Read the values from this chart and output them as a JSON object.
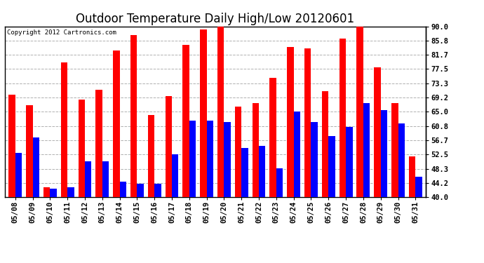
{
  "title": "Outdoor Temperature Daily High/Low 20120601",
  "copyright": "Copyright 2012 Cartronics.com",
  "yticks": [
    40.0,
    44.2,
    48.3,
    52.5,
    56.7,
    60.8,
    65.0,
    69.2,
    73.3,
    77.5,
    81.7,
    85.8,
    90.0
  ],
  "ylim": [
    40.0,
    90.0
  ],
  "dates": [
    "05/08",
    "05/09",
    "05/10",
    "05/11",
    "05/12",
    "05/13",
    "05/14",
    "05/15",
    "05/16",
    "05/17",
    "05/18",
    "05/19",
    "05/20",
    "05/21",
    "05/22",
    "05/23",
    "05/24",
    "05/25",
    "05/26",
    "05/27",
    "05/28",
    "05/29",
    "05/30",
    "05/31"
  ],
  "highs": [
    70.0,
    67.0,
    43.0,
    79.5,
    68.5,
    71.5,
    83.0,
    87.5,
    64.0,
    69.5,
    84.5,
    89.0,
    90.0,
    66.5,
    67.5,
    75.0,
    84.0,
    83.5,
    71.0,
    86.5,
    90.0,
    78.0,
    67.5,
    52.0
  ],
  "lows": [
    53.0,
    57.5,
    42.5,
    43.0,
    50.5,
    50.5,
    44.5,
    44.0,
    44.0,
    52.5,
    62.5,
    62.5,
    62.0,
    54.5,
    55.0,
    48.5,
    65.0,
    62.0,
    58.0,
    60.5,
    67.5,
    65.5,
    61.5,
    46.0
  ],
  "high_color": "#ff0000",
  "low_color": "#0000ff",
  "bar_width": 0.38,
  "bg_color": "#ffffff",
  "grid_color": "#b0b0b0",
  "title_fontsize": 12,
  "tick_fontsize": 7.5,
  "copyright_fontsize": 6.5
}
